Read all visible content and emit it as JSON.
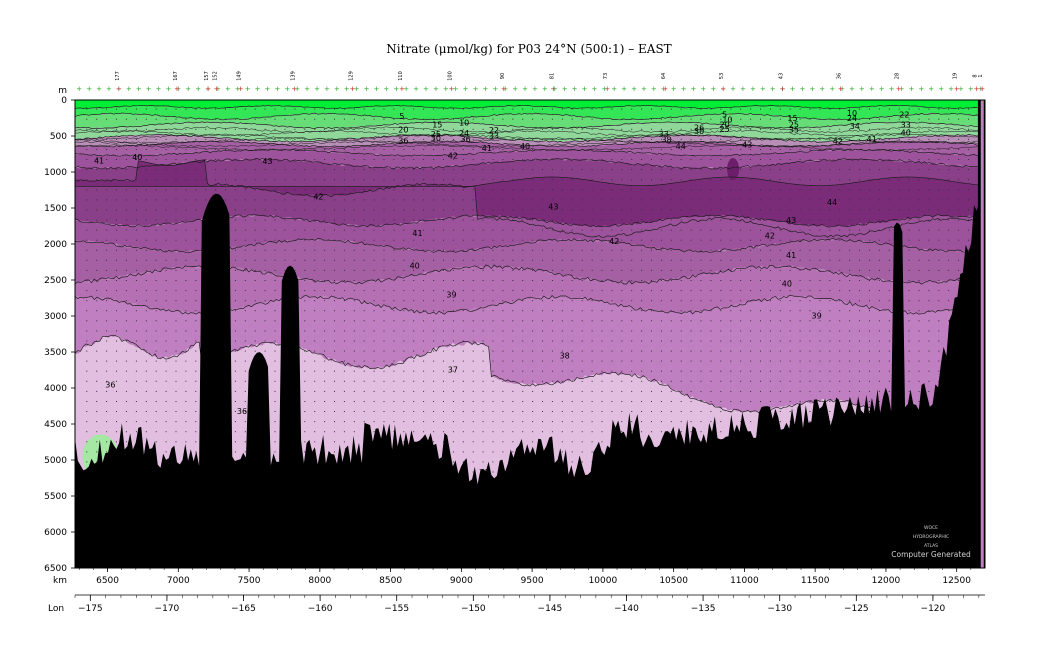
{
  "chart_data": {
    "type": "section-contour",
    "title": "Nitrate (μmol/kg) for P03 24°N (500:1) – EAST",
    "y_axis": {
      "unit": "m",
      "range": [
        0,
        6500
      ],
      "reversed": true,
      "ticks": [
        0,
        500,
        1000,
        1500,
        2000,
        2500,
        3000,
        3500,
        4000,
        4500,
        5000,
        5500,
        6000,
        6500
      ]
    },
    "x_axis": {
      "unit": "km",
      "range": [
        6270,
        12700
      ],
      "ticks": [
        6500,
        7000,
        7500,
        8000,
        8500,
        9000,
        9500,
        10000,
        10500,
        11000,
        11500,
        12000,
        12500
      ]
    },
    "lon_axis": {
      "label": "Lon",
      "range": [
        -176.0,
        -116.6
      ],
      "ticks": [
        -175,
        -170,
        -165,
        -160,
        -155,
        -150,
        -145,
        -140,
        -135,
        -130,
        -125,
        -120
      ],
      "tick_labels": [
        "−175",
        "−170",
        "−165",
        "−160",
        "−155",
        "−150",
        "−145",
        "−140",
        "−135",
        "−130",
        "−125",
        "−120"
      ]
    },
    "stations": [
      {
        "km": 6580,
        "label": "177"
      },
      {
        "km": 6990,
        "label": "167"
      },
      {
        "km": 7210,
        "label": "157"
      },
      {
        "km": 7270,
        "label": "152"
      },
      {
        "km": 7440,
        "label": "149"
      },
      {
        "km": 7820,
        "label": "139"
      },
      {
        "km": 8230,
        "label": "129"
      },
      {
        "km": 8580,
        "label": "110"
      },
      {
        "km": 8930,
        "label": "100"
      },
      {
        "km": 9300,
        "label": "90"
      },
      {
        "km": 9650,
        "label": "81"
      },
      {
        "km": 10030,
        "label": "73"
      },
      {
        "km": 10440,
        "label": "64"
      },
      {
        "km": 10850,
        "label": "53"
      },
      {
        "km": 11270,
        "label": "43"
      },
      {
        "km": 11680,
        "label": "36"
      },
      {
        "km": 12090,
        "label": "28"
      },
      {
        "km": 12500,
        "label": "19"
      },
      {
        "km": 12640,
        "label": "8"
      },
      {
        "km": 12680,
        "label": "1"
      }
    ],
    "color_bands": [
      {
        "range": "0-5",
        "color": "#00ee33"
      },
      {
        "range": "5-15",
        "color": "#33e655"
      },
      {
        "range": "15-25",
        "color": "#66dd77"
      },
      {
        "range": "25-35",
        "color": "#8fd89a"
      },
      {
        "range": "35-36",
        "color": "#e2bfe0"
      },
      {
        "range": "36-37",
        "color": "#d9acd8"
      },
      {
        "range": "37-39",
        "color": "#c07fc0"
      },
      {
        "range": "39-40",
        "color": "#b470b3"
      },
      {
        "range": "40-41",
        "color": "#a460a3"
      },
      {
        "range": "41-42",
        "color": "#9c539b"
      },
      {
        "range": "42-43",
        "color": "#8a3f89"
      },
      {
        "range": "43-44",
        "color": "#7a2c79"
      }
    ],
    "contour_labels": [
      {
        "v": "5",
        "km": 8580,
        "d": 220
      },
      {
        "v": "15",
        "km": 8830,
        "d": 340
      },
      {
        "v": "10",
        "km": 9020,
        "d": 310
      },
      {
        "v": "20",
        "km": 8590,
        "d": 410
      },
      {
        "v": "25",
        "km": 8820,
        "d": 470
      },
      {
        "v": "30",
        "km": 8820,
        "d": 530
      },
      {
        "v": "24",
        "km": 9020,
        "d": 460
      },
      {
        "v": "22",
        "km": 9230,
        "d": 420
      },
      {
        "v": "33",
        "km": 9230,
        "d": 490
      },
      {
        "v": "36",
        "km": 8590,
        "d": 560
      },
      {
        "v": "36",
        "km": 9030,
        "d": 540
      },
      {
        "v": "41",
        "km": 9180,
        "d": 670
      },
      {
        "v": "40",
        "km": 9450,
        "d": 640
      },
      {
        "v": "42",
        "km": 8940,
        "d": 770
      },
      {
        "v": "33",
        "km": 10430,
        "d": 470
      },
      {
        "v": "38",
        "km": 10450,
        "d": 550
      },
      {
        "v": "44",
        "km": 10550,
        "d": 640
      },
      {
        "v": "43",
        "km": 11020,
        "d": 620
      },
      {
        "v": "5",
        "km": 10860,
        "d": 200
      },
      {
        "v": "10",
        "km": 10880,
        "d": 270
      },
      {
        "v": "20",
        "km": 10860,
        "d": 340
      },
      {
        "v": "26",
        "km": 10680,
        "d": 380
      },
      {
        "v": "30",
        "km": 10680,
        "d": 430
      },
      {
        "v": "25",
        "km": 10860,
        "d": 400
      },
      {
        "v": "15",
        "km": 11340,
        "d": 250
      },
      {
        "v": "25",
        "km": 11350,
        "d": 340
      },
      {
        "v": "35",
        "km": 11350,
        "d": 410
      },
      {
        "v": "10",
        "km": 11760,
        "d": 180
      },
      {
        "v": "24",
        "km": 11760,
        "d": 250
      },
      {
        "v": "34",
        "km": 11780,
        "d": 360
      },
      {
        "v": "22",
        "km": 12130,
        "d": 200
      },
      {
        "v": "33",
        "km": 12140,
        "d": 340
      },
      {
        "v": "40",
        "km": 12140,
        "d": 450
      },
      {
        "v": "42",
        "km": 11660,
        "d": 570
      },
      {
        "v": "41",
        "km": 11900,
        "d": 540
      },
      {
        "v": "41",
        "km": 6440,
        "d": 840
      },
      {
        "v": "40",
        "km": 6710,
        "d": 790
      },
      {
        "v": "43",
        "km": 7630,
        "d": 850
      },
      {
        "v": "42",
        "km": 7990,
        "d": 1340
      },
      {
        "v": "43",
        "km": 9650,
        "d": 1480
      },
      {
        "v": "44",
        "km": 11620,
        "d": 1420
      },
      {
        "v": "43",
        "km": 11330,
        "d": 1670
      },
      {
        "v": "42",
        "km": 11180,
        "d": 1880
      },
      {
        "v": "42",
        "km": 10080,
        "d": 1960
      },
      {
        "v": "41",
        "km": 8690,
        "d": 1850
      },
      {
        "v": "41",
        "km": 11330,
        "d": 2150
      },
      {
        "v": "40",
        "km": 8670,
        "d": 2300
      },
      {
        "v": "40",
        "km": 11300,
        "d": 2550
      },
      {
        "v": "39",
        "km": 8930,
        "d": 2700
      },
      {
        "v": "39",
        "km": 11510,
        "d": 2990
      },
      {
        "v": "38",
        "km": 9730,
        "d": 3550
      },
      {
        "v": "37",
        "km": 8940,
        "d": 3740
      },
      {
        "v": "36",
        "km": 6520,
        "d": 3950
      },
      {
        "v": "36",
        "km": 7450,
        "d": 4320
      },
      {
        "v": "36",
        "km": 9160,
        "d": 5170
      }
    ],
    "watermark": {
      "lines": [
        "WOCE",
        "HYDROGRAPHIC",
        "ATLAS"
      ],
      "credit": "Computer Generated"
    }
  }
}
